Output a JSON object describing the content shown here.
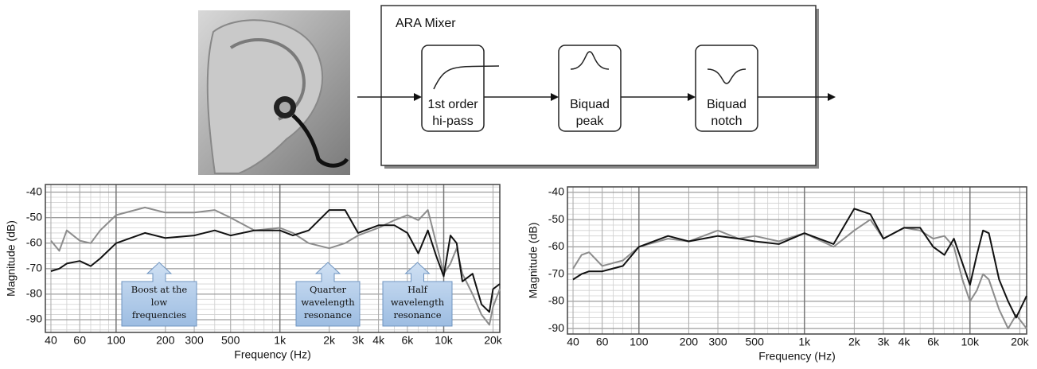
{
  "diagram": {
    "title": "ARA Mixer",
    "blocks": [
      {
        "label": [
          "1st order",
          "hi-pass"
        ]
      },
      {
        "label": [
          "Biquad",
          "peak"
        ]
      },
      {
        "label": [
          "Biquad",
          "notch"
        ]
      }
    ]
  },
  "chart_data": [
    {
      "type": "line",
      "xlabel": "Frequency (Hz)",
      "ylabel": "Magnitude (dB)",
      "xscale": "log",
      "grid": true,
      "x": [
        40,
        45,
        50,
        60,
        70,
        80,
        100,
        150,
        200,
        300,
        400,
        500,
        700,
        1000,
        1200,
        1500,
        2000,
        2500,
        3000,
        4000,
        5000,
        6000,
        7000,
        8000,
        9000,
        10000,
        11000,
        12000,
        13000,
        15000,
        17000,
        19000,
        20000,
        22000
      ],
      "series": [
        {
          "color": "#8c8c8c",
          "values": [
            -59,
            -63,
            -55,
            -59,
            -60,
            -55,
            -49,
            -46,
            -48,
            -48,
            -47,
            -50,
            -55,
            -54,
            -56,
            -60,
            -62,
            -60,
            -57,
            -54,
            -51,
            -49,
            -51,
            -47,
            -60,
            -72,
            -68,
            -62,
            -72,
            -80,
            -88,
            -92,
            -85,
            -78
          ]
        },
        {
          "color": "#111111",
          "values": [
            -71,
            -70,
            -68,
            -67,
            -69,
            -66,
            -60,
            -56,
            -58,
            -57,
            -55,
            -57,
            -55,
            -55,
            -57,
            -55,
            -47,
            -47,
            -56,
            -53,
            -53,
            -56,
            -64,
            -55,
            -65,
            -73,
            -57,
            -60,
            -75,
            -72,
            -84,
            -87,
            -78,
            -76
          ]
        }
      ],
      "xlim": [
        37,
        22000
      ],
      "ylim": [
        -95,
        -37
      ],
      "xticks": [
        40,
        60,
        100,
        200,
        300,
        500,
        {
          "value": 1000,
          "label": "1k"
        },
        {
          "value": 2000,
          "label": "2k"
        },
        {
          "value": 3000,
          "label": "3k"
        },
        {
          "value": 4000,
          "label": "4k"
        },
        {
          "value": 6000,
          "label": "6k"
        },
        {
          "value": 10000,
          "label": "10k"
        },
        {
          "value": 20000,
          "label": "20k"
        }
      ],
      "yticks": [
        -40,
        -50,
        -60,
        -70,
        -80,
        -90
      ],
      "annotations": [
        {
          "text": [
            "Boost at the",
            "low",
            "frequencies"
          ]
        },
        {
          "text": [
            "Quarter",
            "wavelength",
            "resonance"
          ]
        },
        {
          "text": [
            "Half",
            "wavelength",
            "resonance"
          ]
        }
      ]
    },
    {
      "type": "line",
      "xlabel": "Frequency (Hz)",
      "ylabel": "Magnitude (dB)",
      "xscale": "log",
      "grid": true,
      "x": [
        40,
        45,
        50,
        60,
        80,
        100,
        150,
        200,
        300,
        400,
        500,
        700,
        1000,
        1500,
        2000,
        2500,
        3000,
        4000,
        5000,
        6000,
        7000,
        8000,
        9000,
        10000,
        11000,
        12000,
        13000,
        15000,
        17000,
        19000,
        22000
      ],
      "series": [
        {
          "color": "#8c8c8c",
          "values": [
            -68,
            -63,
            -62,
            -67,
            -65,
            -60,
            -57,
            -58,
            -54,
            -57,
            -56,
            -58,
            -55,
            -60,
            -54,
            -50,
            -57,
            -53,
            -54,
            -57,
            -56,
            -60,
            -72,
            -80,
            -76,
            -70,
            -72,
            -83,
            -90,
            -85,
            -90
          ]
        },
        {
          "color": "#111111",
          "values": [
            -72,
            -70,
            -69,
            -69,
            -67,
            -60,
            -56,
            -58,
            -56,
            -57,
            -58,
            -59,
            -55,
            -59,
            -46,
            -48,
            -57,
            -53,
            -53,
            -60,
            -63,
            -57,
            -66,
            -74,
            -63,
            -54,
            -55,
            -72,
            -80,
            -86,
            -78
          ]
        }
      ],
      "xlim": [
        37,
        22000
      ],
      "ylim": [
        -92,
        -38
      ],
      "xticks": [
        40,
        60,
        100,
        200,
        300,
        500,
        {
          "value": 1000,
          "label": "1k"
        },
        {
          "value": 2000,
          "label": "2k"
        },
        {
          "value": 3000,
          "label": "3k"
        },
        {
          "value": 4000,
          "label": "4k"
        },
        {
          "value": 6000,
          "label": "6k"
        },
        {
          "value": 10000,
          "label": "10k"
        },
        {
          "value": 20000,
          "label": "20k"
        }
      ],
      "yticks": [
        -40,
        -50,
        -60,
        -70,
        -80,
        -90
      ]
    }
  ]
}
